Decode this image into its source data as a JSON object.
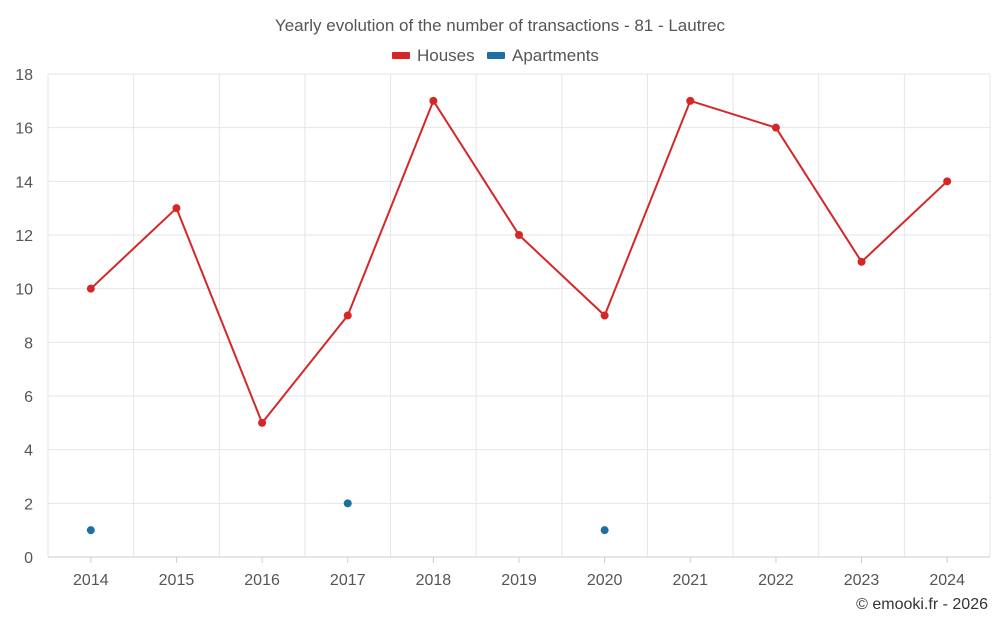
{
  "chart_data": {
    "type": "line",
    "title": "Yearly evolution of the number of transactions - 81 - Lautrec",
    "categories": [
      "2014",
      "2015",
      "2016",
      "2017",
      "2018",
      "2019",
      "2020",
      "2021",
      "2022",
      "2023",
      "2024"
    ],
    "series": [
      {
        "name": "Houses",
        "color": "#d62728",
        "style": "line-with-markers",
        "values": [
          10,
          13,
          5,
          9,
          17,
          12,
          9,
          17,
          16,
          11,
          14
        ]
      },
      {
        "name": "Apartments",
        "color": "#1f6fa3",
        "style": "markers-only",
        "values": [
          1,
          null,
          null,
          2,
          null,
          null,
          1,
          null,
          null,
          null,
          null
        ]
      }
    ],
    "xlabel": "",
    "ylabel": "",
    "ylim": [
      0,
      18
    ],
    "yticks": [
      "0",
      "2",
      "4",
      "6",
      "8",
      "10",
      "12",
      "14",
      "16",
      "18"
    ],
    "grid": true,
    "legend_position": "top-center"
  },
  "credit": "© emooki.fr - 2026"
}
